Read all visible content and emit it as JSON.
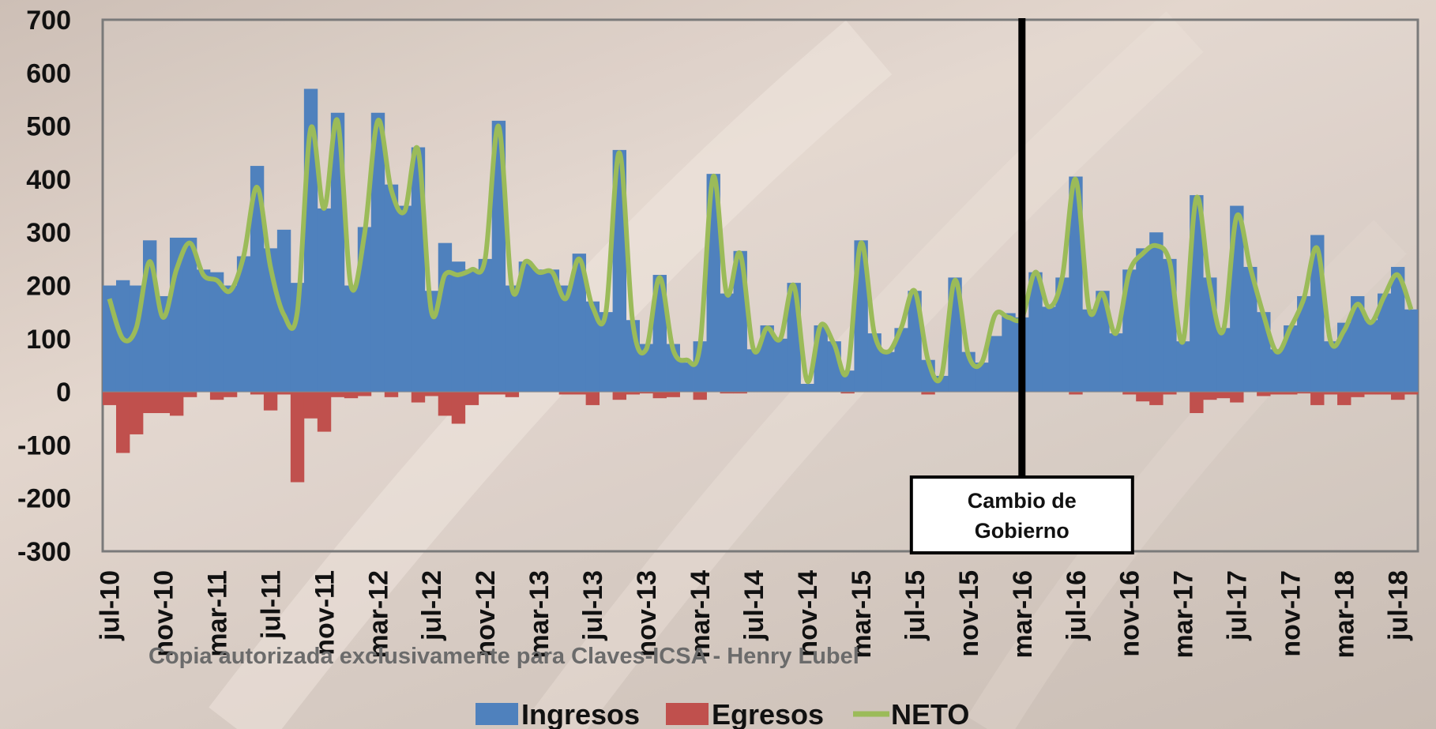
{
  "colors": {
    "ingresos": "#4F81BD",
    "egresos": "#C0504D",
    "neto": "#9BBB59"
  },
  "watermark": "Copia autorizada exclusivamente para Claves-ICSA - Henry Lubel",
  "annotation": {
    "line1": "Cambio de",
    "line2": "Gobierno",
    "at_month_index": 68.5
  },
  "chart_data": {
    "type": "bar",
    "title": "",
    "xlabel": "",
    "ylabel": "",
    "ylim": [
      -300,
      700
    ],
    "yticks": [
      700,
      600,
      500,
      400,
      300,
      200,
      100,
      0,
      -100,
      -200,
      -300
    ],
    "x_tick_labels": [
      "jul-10",
      "nov-10",
      "mar-11",
      "jul-11",
      "nov-11",
      "mar-12",
      "jul-12",
      "nov-12",
      "mar-13",
      "jul-13",
      "nov-13",
      "mar-14",
      "jul-14",
      "nov-14",
      "mar-15",
      "jul-15",
      "nov-15",
      "mar-16",
      "jul-16",
      "nov-16",
      "mar-17",
      "jul-17",
      "nov-17",
      "mar-18",
      "jul-18"
    ],
    "x_start": "jul-10",
    "x_end": "jul-18",
    "grid": false,
    "legend_position": "bottom",
    "series": [
      {
        "name": "Ingresos",
        "type": "bar",
        "values": [
          200,
          210,
          200,
          285,
          180,
          290,
          290,
          230,
          225,
          200,
          255,
          425,
          270,
          305,
          205,
          570,
          345,
          525,
          200,
          310,
          525,
          390,
          350,
          460,
          190,
          280,
          245,
          230,
          250,
          510,
          200,
          245,
          230,
          230,
          200,
          260,
          170,
          150,
          455,
          135,
          90,
          220,
          90,
          55,
          95,
          410,
          185,
          265,
          80,
          125,
          100,
          205,
          15,
          125,
          95,
          40,
          285,
          110,
          75,
          120,
          190,
          60,
          30,
          215,
          75,
          55,
          105,
          148,
          140,
          225,
          160,
          215,
          405,
          155,
          190,
          110,
          230,
          270,
          300,
          250,
          95,
          370,
          215,
          120,
          350,
          235,
          150,
          80,
          125,
          180,
          295,
          95,
          130,
          180,
          135,
          185,
          235,
          155
        ]
      },
      {
        "name": "Egresos",
        "type": "bar",
        "values": [
          -25,
          -115,
          -80,
          -40,
          -40,
          -45,
          -10,
          0,
          -15,
          -10,
          0,
          -5,
          -35,
          -5,
          -170,
          -50,
          -75,
          -10,
          -12,
          -8,
          0,
          -10,
          0,
          -20,
          -8,
          -45,
          -60,
          -25,
          -5,
          -5,
          -10,
          0,
          0,
          0,
          -5,
          -5,
          -25,
          0,
          -15,
          -5,
          -3,
          -12,
          -10,
          0,
          -15,
          0,
          -3,
          -3,
          0,
          0,
          0,
          0,
          0,
          0,
          0,
          -3,
          0,
          0,
          0,
          0,
          0,
          -5,
          0,
          0,
          0,
          0,
          0,
          0,
          0,
          0,
          0,
          0,
          -5,
          0,
          0,
          0,
          -5,
          -18,
          -25,
          -5,
          0,
          -40,
          -15,
          -12,
          -20,
          0,
          -8,
          -5,
          -5,
          -3,
          -25,
          -5,
          -25,
          -10,
          -5,
          -5,
          -15,
          -5
        ]
      },
      {
        "name": "NETO",
        "type": "line",
        "values": [
          175,
          100,
          120,
          245,
          140,
          230,
          280,
          220,
          210,
          190,
          255,
          385,
          235,
          145,
          150,
          495,
          345,
          510,
          200,
          295,
          510,
          380,
          340,
          455,
          150,
          220,
          220,
          230,
          250,
          500,
          195,
          245,
          225,
          225,
          175,
          250,
          160,
          150,
          450,
          130,
          80,
          215,
          80,
          60,
          85,
          405,
          185,
          260,
          80,
          120,
          100,
          200,
          20,
          125,
          90,
          40,
          280,
          110,
          75,
          120,
          190,
          60,
          30,
          210,
          70,
          55,
          145,
          140,
          140,
          225,
          160,
          215,
          400,
          155,
          185,
          110,
          225,
          260,
          275,
          245,
          95,
          365,
          200,
          115,
          330,
          235,
          145,
          75,
          120,
          175,
          270,
          95,
          115,
          165,
          130,
          180,
          220,
          155
        ]
      }
    ]
  },
  "legend": [
    {
      "key": "ingresos",
      "label": "Ingresos",
      "kind": "box"
    },
    {
      "key": "egresos",
      "label": "Egresos",
      "kind": "box"
    },
    {
      "key": "neto",
      "label": "NETO",
      "kind": "line"
    }
  ]
}
